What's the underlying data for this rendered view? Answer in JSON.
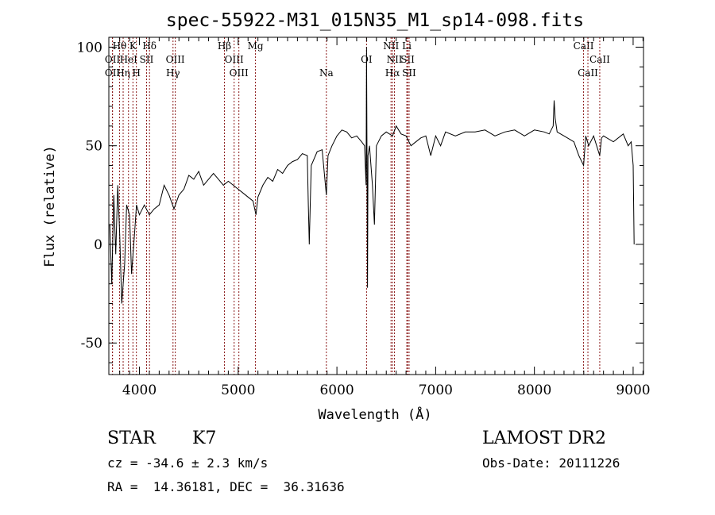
{
  "chart_data": {
    "type": "line",
    "title": "spec-55922-M31_015N35_M1_sp14-098.fits",
    "xlabel": "Wavelength (Å)",
    "ylabel": "Flux (relative)",
    "xlim": [
      3690,
      9105
    ],
    "ylim": [
      -66,
      105
    ],
    "xticks": [
      4000,
      5000,
      6000,
      7000,
      8000,
      9000
    ],
    "yticks": [
      -50,
      0,
      50,
      100
    ],
    "grid": false,
    "line_color": "#000000",
    "marker_color": "#8b1a1a",
    "series": [
      {
        "name": "spectrum",
        "x": [
          3700,
          3720,
          3740,
          3760,
          3780,
          3800,
          3820,
          3850,
          3870,
          3900,
          3920,
          3950,
          3970,
          4000,
          4050,
          4100,
          4150,
          4200,
          4250,
          4300,
          4350,
          4400,
          4450,
          4500,
          4550,
          4600,
          4650,
          4700,
          4750,
          4800,
          4850,
          4900,
          4950,
          5000,
          5050,
          5100,
          5150,
          5180,
          5200,
          5250,
          5300,
          5350,
          5400,
          5450,
          5500,
          5550,
          5600,
          5650,
          5700,
          5710,
          5720,
          5730,
          5740,
          5800,
          5850,
          5893,
          5910,
          5950,
          6000,
          6050,
          6100,
          6150,
          6200,
          6250,
          6280,
          6295,
          6300,
          6305,
          6310,
          6315,
          6330,
          6360,
          6380,
          6400,
          6450,
          6500,
          6563,
          6600,
          6650,
          6700,
          6750,
          6800,
          6850,
          6900,
          6950,
          7000,
          7050,
          7100,
          7200,
          7300,
          7400,
          7500,
          7600,
          7700,
          7800,
          7900,
          8000,
          8100,
          8150,
          8190,
          8200,
          8210,
          8230,
          8300,
          8400,
          8450,
          8498,
          8520,
          8550,
          8600,
          8662,
          8680,
          8700,
          8800,
          8900,
          8950,
          8980,
          9000,
          9010
        ],
        "y": [
          10,
          -20,
          25,
          -5,
          30,
          5,
          -30,
          -10,
          20,
          15,
          -15,
          5,
          20,
          15,
          20,
          15,
          18,
          20,
          30,
          25,
          18,
          25,
          28,
          35,
          33,
          37,
          30,
          33,
          36,
          33,
          30,
          32,
          30,
          28,
          26,
          24,
          22,
          15,
          24,
          30,
          34,
          32,
          38,
          36,
          40,
          42,
          43,
          46,
          45,
          20,
          0,
          20,
          40,
          47,
          48,
          25,
          45,
          50,
          55,
          58,
          57,
          54,
          55,
          52,
          50,
          30,
          100,
          40,
          -22,
          45,
          50,
          30,
          10,
          50,
          55,
          57,
          55,
          60,
          56,
          55,
          50,
          52,
          54,
          55,
          45,
          55,
          50,
          57,
          55,
          57,
          57,
          58,
          55,
          57,
          58,
          55,
          58,
          57,
          56,
          60,
          73,
          64,
          57,
          55,
          52,
          45,
          40,
          55,
          50,
          55,
          45,
          54,
          55,
          52,
          56,
          50,
          52,
          40,
          0
        ]
      }
    ],
    "line_markers": [
      {
        "label": "OII",
        "wavelength": 3727,
        "row": 2
      },
      {
        "label": "OII",
        "wavelength": 3727,
        "row": 3
      },
      {
        "label": "Hθ",
        "wavelength": 3798,
        "row": 1
      },
      {
        "label": "Hη",
        "wavelength": 3835,
        "row": 3
      },
      {
        "label": "HeI",
        "wavelength": 3889,
        "row": 2
      },
      {
        "label": "K",
        "wavelength": 3934,
        "row": 1
      },
      {
        "label": "H",
        "wavelength": 3969,
        "row": 3
      },
      {
        "label": "SII",
        "wavelength": 4072,
        "row": 2
      },
      {
        "label": "Hδ",
        "wavelength": 4102,
        "row": 1
      },
      {
        "label": "Hγ",
        "wavelength": 4340,
        "row": 3
      },
      {
        "label": "OIII",
        "wavelength": 4363,
        "row": 2
      },
      {
        "label": "Hβ",
        "wavelength": 4861,
        "row": 1
      },
      {
        "label": "OIII",
        "wavelength": 4959,
        "row": 2
      },
      {
        "label": "OIII",
        "wavelength": 5007,
        "row": 3
      },
      {
        "label": "Mg",
        "wavelength": 5175,
        "row": 1
      },
      {
        "label": "Na",
        "wavelength": 5893,
        "row": 3
      },
      {
        "label": "OI",
        "wavelength": 6300,
        "row": 2
      },
      {
        "label": "NII",
        "wavelength": 6548,
        "row": 1
      },
      {
        "label": "Hα",
        "wavelength": 6563,
        "row": 3
      },
      {
        "label": "NII",
        "wavelength": 6583,
        "row": 2
      },
      {
        "label": "Li",
        "wavelength": 6708,
        "row": 1
      },
      {
        "label": "SII",
        "wavelength": 6716,
        "row": 2
      },
      {
        "label": "SII",
        "wavelength": 6731,
        "row": 3
      },
      {
        "label": "CaII",
        "wavelength": 8498,
        "row": 1
      },
      {
        "label": "CaII",
        "wavelength": 8542,
        "row": 3
      },
      {
        "label": "CaII",
        "wavelength": 8662,
        "row": 2
      }
    ]
  },
  "info": {
    "class": "STAR",
    "subclass": "K7",
    "cz": "cz = -34.6 ± 2.3 km/s",
    "coords": "RA =  14.36181, DEC =  36.31636",
    "survey": "LAMOST DR2",
    "obs_date": "Obs-Date: 20111226"
  }
}
